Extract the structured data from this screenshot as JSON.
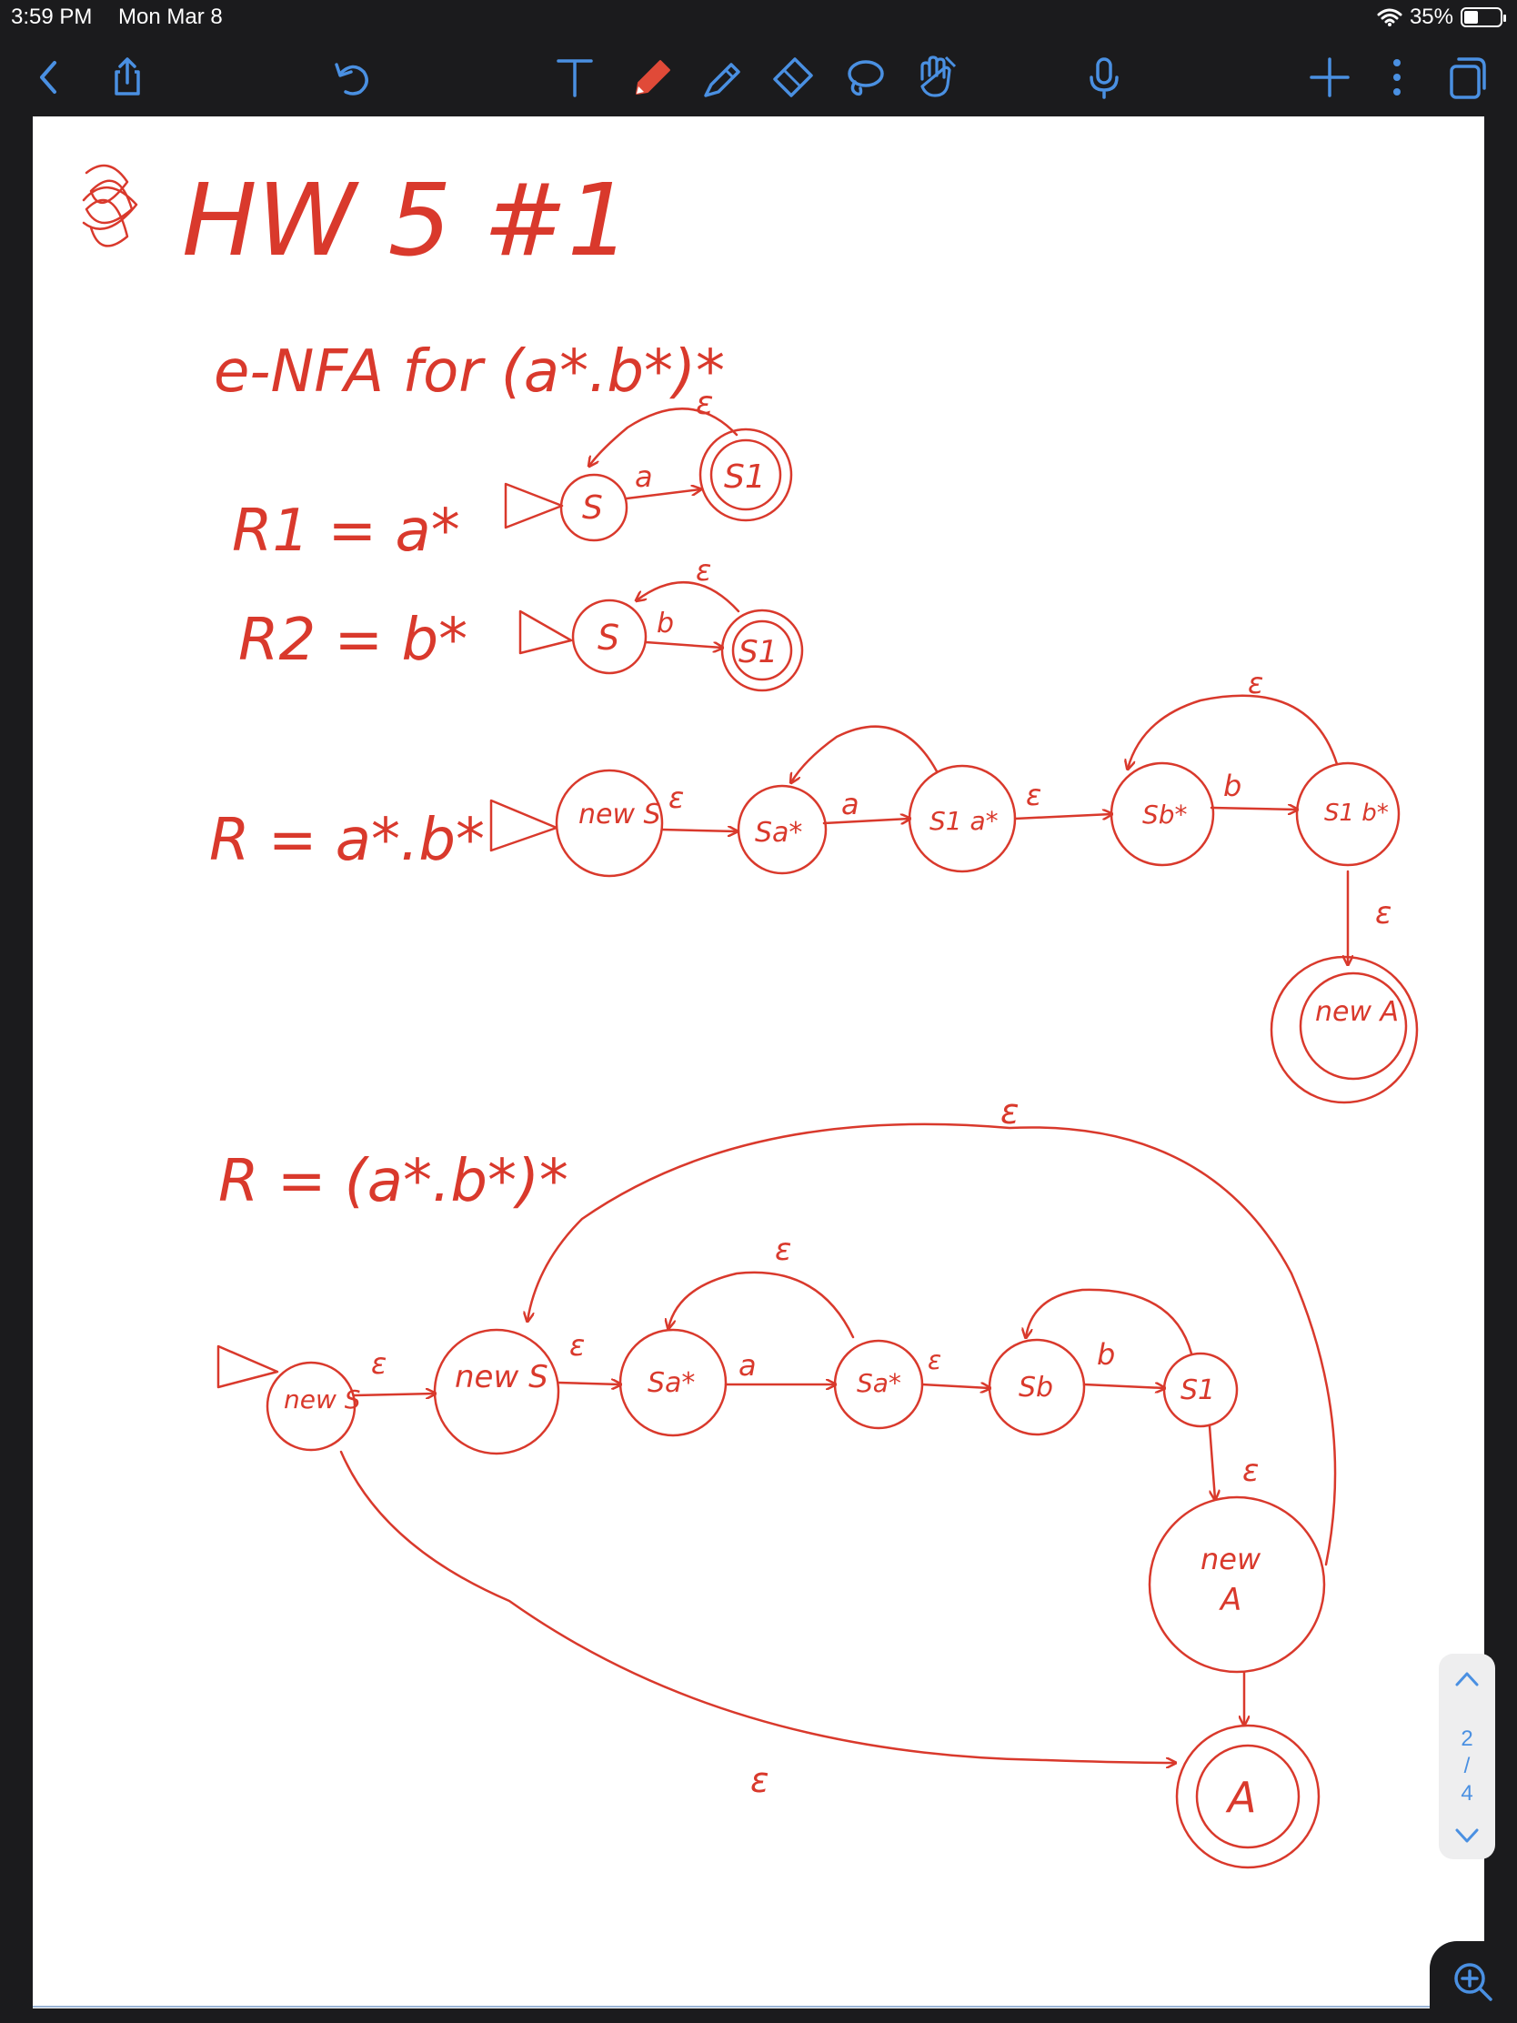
{
  "status_bar": {
    "time": "3:59 PM",
    "date": "Mon Mar 8",
    "battery_percent": "35%",
    "battery_level": 0.35
  },
  "toolbar": {
    "left_icons": [
      "back-chevron-icon",
      "share-icon",
      "undo-icon"
    ],
    "tools": [
      "text-tool-icon",
      "pen-icon",
      "highlighter-icon",
      "eraser-icon",
      "lasso-icon",
      "hand-shape-icon"
    ],
    "right_icons": [
      "microphone-icon",
      "add-icon",
      "more-icon",
      "pages-icon"
    ],
    "active_tool": "pen",
    "pen_color": "#d9392c",
    "accent_color": "#4a90e2"
  },
  "note": {
    "title": "HW 5 #1",
    "subtitle": "e-NFA for (a*.b*)*",
    "r1_label": "R1 = a*",
    "r2_label": "R2 = b*",
    "r_concat_label": "R = a*.b*",
    "r_star_label": "R = (a*.b*)*",
    "eps": "ε",
    "a": "a",
    "b": "b",
    "s": "S",
    "s1": "S1",
    "new": "new",
    "new_s": "new S",
    "sa_star": "Sa*",
    "s1_a_star": "S1 a*",
    "sb_star": "Sb*",
    "s1_b_star": "S1 b*",
    "sb": "Sb",
    "new_a": "new A",
    "A": "A"
  },
  "page_nav": {
    "current": "2",
    "separator": "/",
    "total": "4"
  }
}
